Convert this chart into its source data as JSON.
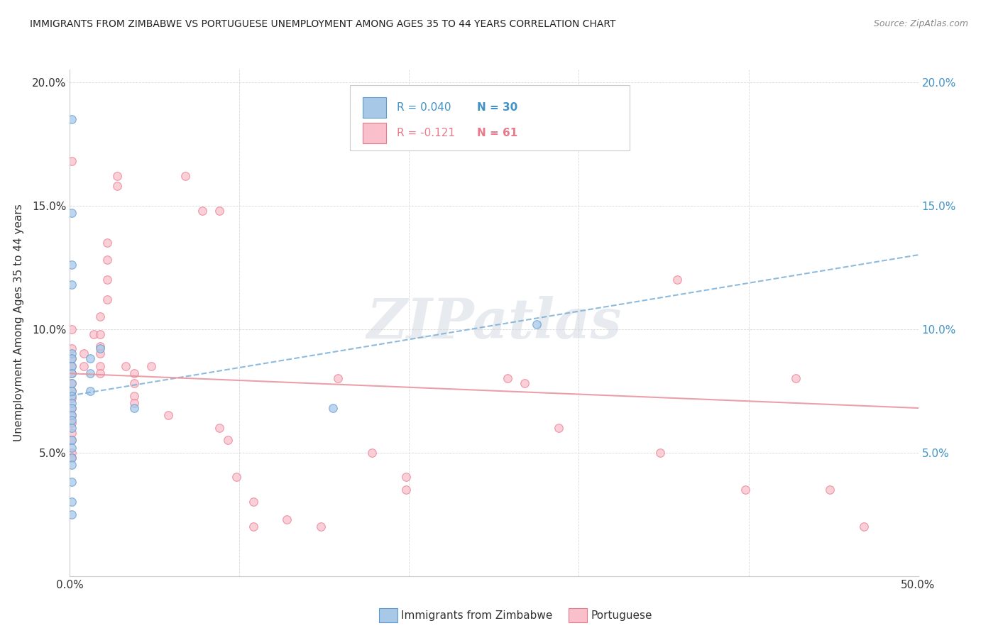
{
  "title": "IMMIGRANTS FROM ZIMBABWE VS PORTUGUESE UNEMPLOYMENT AMONG AGES 35 TO 44 YEARS CORRELATION CHART",
  "source": "Source: ZipAtlas.com",
  "ylabel": "Unemployment Among Ages 35 to 44 years",
  "xlim": [
    0,
    0.5
  ],
  "ylim": [
    0,
    0.205
  ],
  "xticks": [
    0.0,
    0.1,
    0.2,
    0.3,
    0.4,
    0.5
  ],
  "xticklabels": [
    "0.0%",
    "",
    "",
    "",
    "",
    "50.0%"
  ],
  "yticks_left": [
    0.0,
    0.05,
    0.1,
    0.15,
    0.2
  ],
  "yticklabels_left": [
    "",
    "5.0%",
    "10.0%",
    "15.0%",
    "20.0%"
  ],
  "yticks_right": [
    0.0,
    0.05,
    0.1,
    0.15,
    0.2
  ],
  "yticklabels_right": [
    "",
    "5.0%",
    "10.0%",
    "15.0%",
    "20.0%"
  ],
  "legend1_R": "R = 0.040",
  "legend1_N": "N = 30",
  "legend2_R": "R = -0.121",
  "legend2_N": "N = 61",
  "legend1_color": "#a8c8e8",
  "legend1_edge": "#5b9bd5",
  "legend2_color": "#f9c0cb",
  "legend2_edge": "#e87a8c",
  "blue_color": "#a8c8e8",
  "blue_edge": "#5b9bd5",
  "pink_color": "#f9c0cb",
  "pink_edge": "#e87a8c",
  "blue_line_color": "#7ab0d8",
  "pink_line_color": "#e8909a",
  "watermark_text": "ZIPatlas",
  "watermark_color": "#d0d8e0",
  "watermark_alpha": 0.5,
  "blue_scatter": [
    [
      0.001,
      0.185
    ],
    [
      0.001,
      0.147
    ],
    [
      0.001,
      0.126
    ],
    [
      0.001,
      0.118
    ],
    [
      0.001,
      0.09
    ],
    [
      0.001,
      0.088
    ],
    [
      0.001,
      0.085
    ],
    [
      0.001,
      0.082
    ],
    [
      0.001,
      0.078
    ],
    [
      0.001,
      0.075
    ],
    [
      0.001,
      0.073
    ],
    [
      0.001,
      0.07
    ],
    [
      0.001,
      0.068
    ],
    [
      0.001,
      0.065
    ],
    [
      0.001,
      0.063
    ],
    [
      0.001,
      0.06
    ],
    [
      0.001,
      0.055
    ],
    [
      0.001,
      0.052
    ],
    [
      0.001,
      0.048
    ],
    [
      0.001,
      0.045
    ],
    [
      0.001,
      0.038
    ],
    [
      0.001,
      0.03
    ],
    [
      0.001,
      0.025
    ],
    [
      0.012,
      0.088
    ],
    [
      0.012,
      0.082
    ],
    [
      0.012,
      0.075
    ],
    [
      0.018,
      0.092
    ],
    [
      0.038,
      0.068
    ],
    [
      0.155,
      0.068
    ],
    [
      0.275,
      0.102
    ]
  ],
  "pink_scatter": [
    [
      0.001,
      0.168
    ],
    [
      0.001,
      0.1
    ],
    [
      0.001,
      0.092
    ],
    [
      0.001,
      0.088
    ],
    [
      0.001,
      0.085
    ],
    [
      0.001,
      0.082
    ],
    [
      0.001,
      0.078
    ],
    [
      0.001,
      0.075
    ],
    [
      0.001,
      0.072
    ],
    [
      0.001,
      0.068
    ],
    [
      0.001,
      0.065
    ],
    [
      0.001,
      0.062
    ],
    [
      0.001,
      0.058
    ],
    [
      0.001,
      0.055
    ],
    [
      0.001,
      0.05
    ],
    [
      0.001,
      0.048
    ],
    [
      0.008,
      0.09
    ],
    [
      0.008,
      0.085
    ],
    [
      0.014,
      0.098
    ],
    [
      0.018,
      0.105
    ],
    [
      0.018,
      0.098
    ],
    [
      0.018,
      0.093
    ],
    [
      0.018,
      0.09
    ],
    [
      0.018,
      0.085
    ],
    [
      0.018,
      0.082
    ],
    [
      0.022,
      0.135
    ],
    [
      0.022,
      0.128
    ],
    [
      0.022,
      0.12
    ],
    [
      0.022,
      0.112
    ],
    [
      0.028,
      0.162
    ],
    [
      0.028,
      0.158
    ],
    [
      0.033,
      0.085
    ],
    [
      0.038,
      0.082
    ],
    [
      0.038,
      0.078
    ],
    [
      0.038,
      0.073
    ],
    [
      0.038,
      0.07
    ],
    [
      0.048,
      0.085
    ],
    [
      0.058,
      0.065
    ],
    [
      0.068,
      0.162
    ],
    [
      0.078,
      0.148
    ],
    [
      0.088,
      0.148
    ],
    [
      0.088,
      0.06
    ],
    [
      0.093,
      0.055
    ],
    [
      0.098,
      0.04
    ],
    [
      0.108,
      0.03
    ],
    [
      0.108,
      0.02
    ],
    [
      0.128,
      0.023
    ],
    [
      0.148,
      0.02
    ],
    [
      0.158,
      0.08
    ],
    [
      0.178,
      0.05
    ],
    [
      0.198,
      0.04
    ],
    [
      0.198,
      0.035
    ],
    [
      0.258,
      0.08
    ],
    [
      0.268,
      0.078
    ],
    [
      0.288,
      0.06
    ],
    [
      0.348,
      0.05
    ],
    [
      0.358,
      0.12
    ],
    [
      0.398,
      0.035
    ],
    [
      0.428,
      0.08
    ],
    [
      0.448,
      0.035
    ],
    [
      0.468,
      0.02
    ]
  ],
  "blue_line_x": [
    0.0,
    0.5
  ],
  "blue_line_y": [
    0.073,
    0.13
  ],
  "pink_line_x": [
    0.0,
    0.5
  ],
  "pink_line_y": [
    0.082,
    0.068
  ],
  "scatter_size": 70,
  "scatter_alpha": 0.75
}
